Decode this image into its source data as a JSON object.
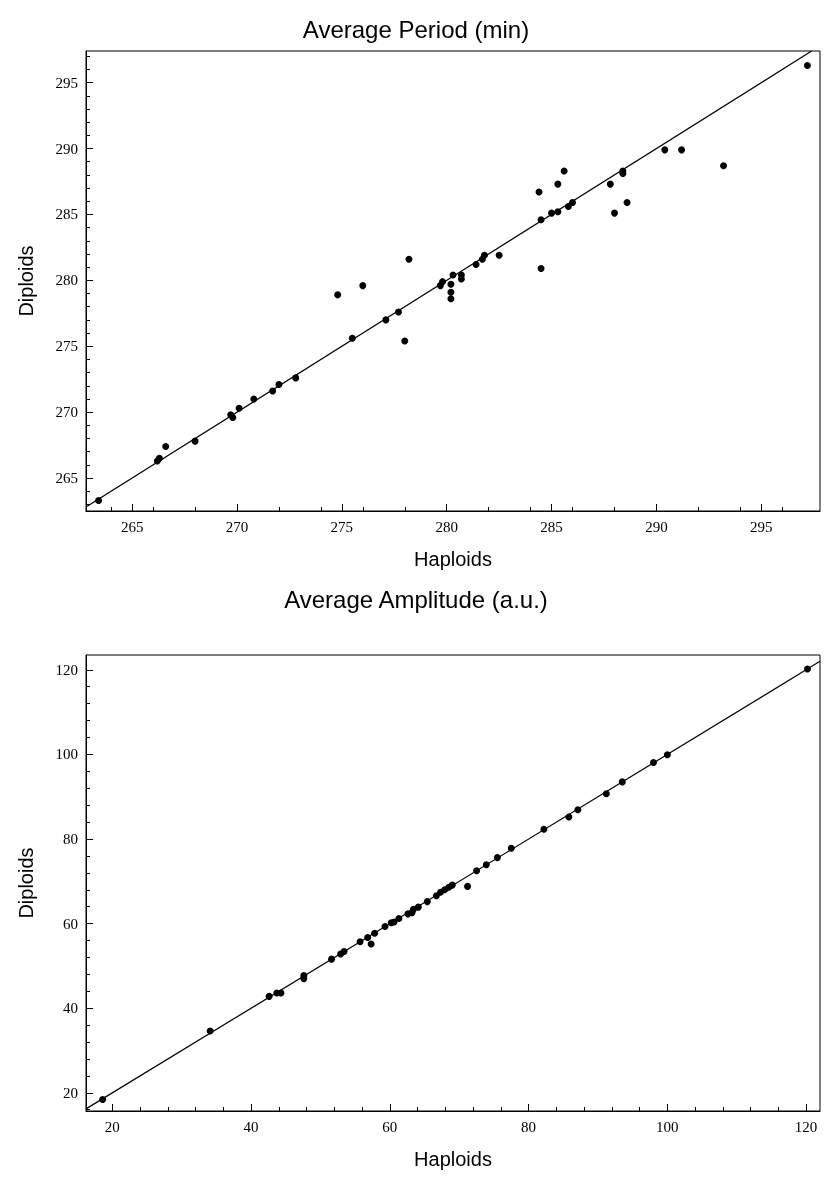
{
  "chart_data": [
    {
      "type": "scatter",
      "title": "Average Period (min)",
      "xlabel": "Haploids",
      "ylabel": "Diploids",
      "xlim": [
        262.8,
        297.8
      ],
      "ylim": [
        262.5,
        297.4
      ],
      "xticks": [
        265,
        270,
        275,
        280,
        285,
        290,
        295
      ],
      "yticks": [
        265,
        270,
        275,
        280,
        285,
        290,
        295
      ],
      "marker": "circle",
      "series": [
        {
          "color": "#000000",
          "x": [
            263.4,
            266.2,
            266.3,
            266.6,
            268.0,
            269.7,
            269.8,
            270.1,
            270.8,
            271.7,
            272.0,
            272.8,
            274.8,
            275.5,
            276.0,
            277.1,
            277.7,
            278.0,
            278.2,
            279.7,
            279.8,
            280.2,
            280.2,
            280.2,
            280.3,
            280.7,
            280.7,
            281.4,
            281.7,
            281.8,
            282.5,
            284.4,
            284.5,
            284.5,
            285.0,
            285.3,
            285.3,
            285.6,
            285.8,
            286.0,
            287.8,
            288.0,
            288.4,
            288.4,
            288.6,
            290.4,
            291.2,
            293.2,
            297.2
          ],
          "values": [
            263.3,
            266.3,
            266.5,
            267.4,
            267.8,
            269.8,
            269.6,
            270.3,
            271.0,
            271.6,
            272.1,
            272.6,
            278.9,
            275.6,
            279.6,
            277.0,
            277.6,
            275.4,
            281.6,
            279.6,
            279.9,
            279.7,
            279.1,
            278.6,
            280.4,
            280.4,
            280.1,
            281.2,
            281.6,
            281.9,
            281.9,
            286.7,
            284.6,
            280.9,
            285.1,
            287.3,
            285.2,
            288.3,
            285.6,
            285.9,
            287.3,
            285.1,
            288.3,
            288.1,
            285.9,
            289.9,
            289.9,
            288.7,
            296.3
          ]
        },
        {
          "type": "line",
          "color": "#000000",
          "marker": "none",
          "x": [
            262.8,
            297.4
          ],
          "values": [
            262.8,
            297.4
          ]
        }
      ]
    },
    {
      "type": "scatter",
      "title": "Average Amplitude (a.u.)",
      "xlabel": "Haploids",
      "ylabel": "Diploids",
      "xlim": [
        16.2,
        122.0
      ],
      "ylim": [
        15.7,
        123.5
      ],
      "xticks": [
        20,
        40,
        60,
        80,
        100,
        120
      ],
      "yticks": [
        20,
        40,
        60,
        80,
        100,
        120
      ],
      "marker": "circle",
      "series": [
        {
          "color": "#000000",
          "x": [
            18.6,
            34.1,
            42.6,
            43.7,
            44.3,
            47.6,
            47.6,
            51.6,
            52.9,
            53.4,
            55.7,
            56.8,
            57.3,
            57.8,
            59.3,
            60.2,
            60.6,
            61.3,
            62.6,
            63.2,
            63.4,
            64.1,
            65.4,
            66.7,
            67.3,
            67.9,
            68.5,
            69.0,
            71.2,
            72.5,
            73.9,
            75.5,
            77.5,
            82.2,
            85.8,
            87.1,
            91.2,
            93.5,
            98.0,
            100.0,
            120.2
          ],
          "values": [
            18.4,
            34.6,
            42.8,
            43.6,
            43.6,
            47.7,
            47.0,
            51.6,
            52.8,
            53.4,
            55.7,
            56.7,
            55.2,
            57.7,
            59.3,
            60.2,
            60.4,
            61.2,
            62.3,
            62.6,
            63.4,
            63.9,
            65.2,
            66.6,
            67.4,
            68.0,
            68.6,
            69.1,
            68.8,
            72.5,
            73.9,
            75.6,
            77.8,
            82.3,
            85.2,
            86.9,
            90.7,
            93.5,
            98.1,
            99.9,
            120.2
          ]
        },
        {
          "type": "line",
          "color": "#000000",
          "marker": "none",
          "x": [
            16.2,
            122.0
          ],
          "values": [
            16.2,
            122.0
          ]
        }
      ]
    }
  ]
}
